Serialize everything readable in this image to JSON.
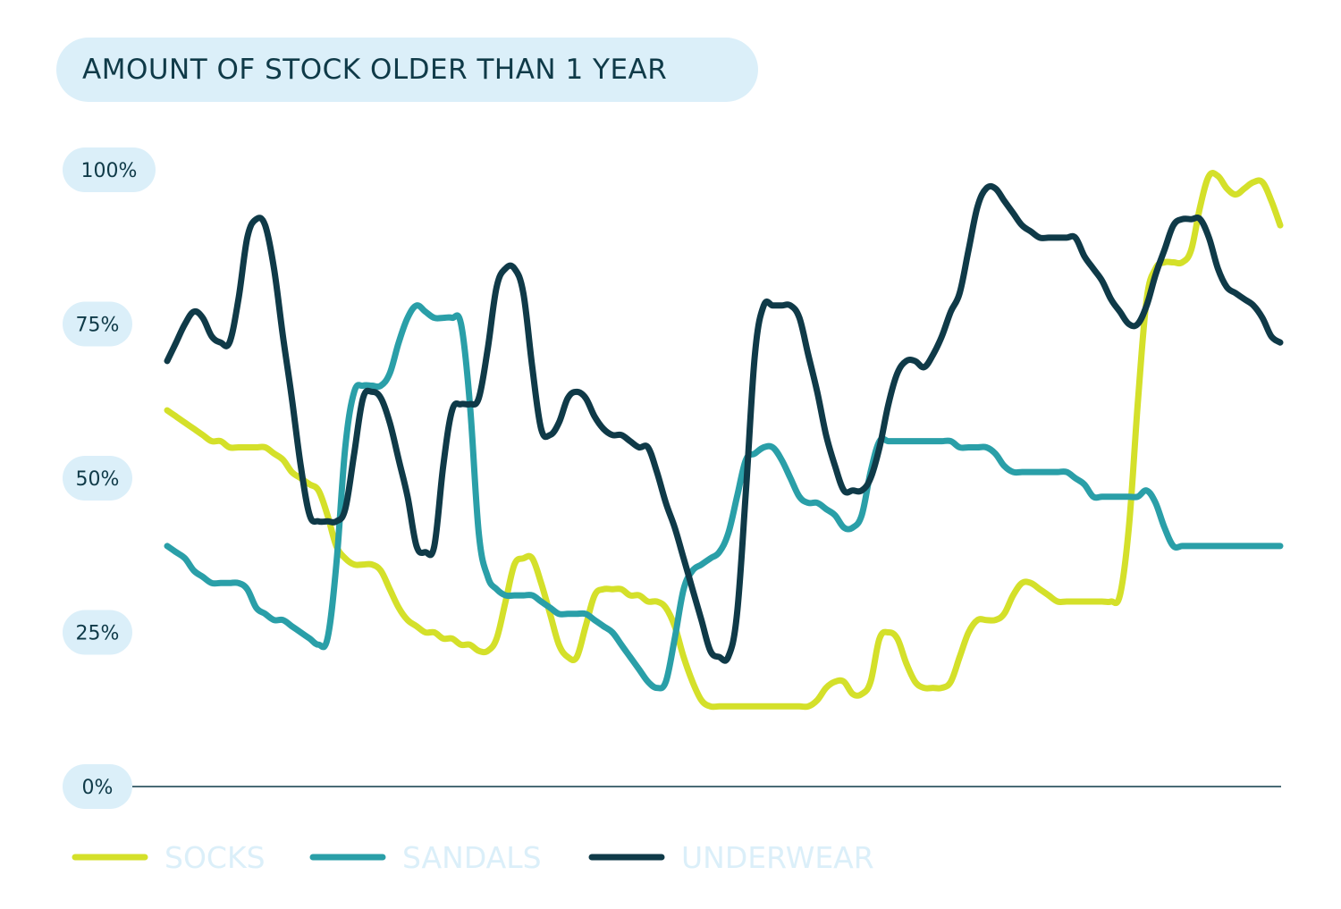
{
  "chart_data": {
    "type": "line",
    "title": "AMOUNT OF STOCK OLDER THAN 1 YEAR",
    "ylim": [
      0,
      100
    ],
    "yticks": [
      {
        "value": 0,
        "label": "0%"
      },
      {
        "value": 25,
        "label": "25%"
      },
      {
        "value": 50,
        "label": "50%"
      },
      {
        "value": 75,
        "label": "75%"
      },
      {
        "value": 100,
        "label": "100%"
      }
    ],
    "x": [
      0,
      1,
      2,
      3,
      4,
      5,
      6,
      7,
      8,
      9,
      10,
      11,
      12,
      13,
      14,
      15,
      16,
      17,
      18,
      19,
      20,
      21,
      22,
      23,
      24,
      25,
      26,
      27,
      28,
      29,
      30,
      31,
      32,
      33,
      34,
      35,
      36,
      37,
      38,
      39,
      40,
      41,
      42,
      43,
      44,
      45,
      46,
      47,
      48,
      49,
      50,
      51,
      52,
      53,
      54,
      55,
      56,
      57,
      58,
      59,
      60,
      61,
      62,
      63,
      64,
      65,
      66,
      67,
      68,
      69,
      70,
      71,
      72,
      73,
      74,
      75,
      76,
      77,
      78,
      79,
      80,
      81,
      82,
      83,
      84,
      85,
      86,
      87,
      88,
      89,
      90,
      91,
      92,
      93,
      94,
      95,
      96,
      97,
      98,
      99,
      100,
      101,
      102,
      103,
      104,
      105,
      106,
      107,
      108,
      109,
      110,
      111,
      112,
      113,
      114,
      115,
      116,
      117,
      118,
      119,
      120,
      121,
      122,
      123,
      124,
      125
    ],
    "grid": false,
    "legend_position": "bottom-left",
    "series": [
      {
        "name": "SOCKS",
        "color": "#d4e02a",
        "values": [
          61,
          60,
          59,
          58,
          57,
          56,
          56,
          55,
          55,
          55,
          55,
          55,
          54,
          53,
          51,
          50,
          49,
          48,
          44,
          39,
          37,
          36,
          36,
          36,
          35,
          32,
          29,
          27,
          26,
          25,
          25,
          24,
          24,
          23,
          23,
          22,
          22,
          24,
          30,
          36,
          37,
          37,
          33,
          28,
          23,
          21,
          21,
          26,
          31,
          32,
          32,
          32,
          31,
          31,
          30,
          30,
          29,
          26,
          21,
          17,
          14,
          13,
          13,
          13,
          13,
          13,
          13,
          13,
          13,
          13,
          13,
          13,
          13,
          14,
          16,
          17,
          17,
          15,
          15,
          17,
          24,
          25,
          24,
          20,
          17,
          16,
          16,
          16,
          17,
          21,
          25,
          27,
          27,
          27,
          28,
          31,
          33,
          33,
          32,
          31,
          30,
          30,
          30,
          30,
          30,
          30,
          30,
          31,
          42,
          62,
          79,
          84,
          85,
          85,
          85,
          87,
          94,
          99,
          99,
          97,
          96,
          97,
          98,
          98,
          95,
          91
        ]
      },
      {
        "name": "SANDALS",
        "color": "#2a9fa8",
        "values": [
          39,
          38,
          37,
          35,
          34,
          33,
          33,
          33,
          33,
          32,
          29,
          28,
          27,
          27,
          26,
          25,
          24,
          23,
          24,
          36,
          55,
          64,
          65,
          65,
          65,
          67,
          72,
          76,
          78,
          77,
          76,
          76,
          76,
          75,
          62,
          41,
          34,
          32,
          31,
          31,
          31,
          31,
          30,
          29,
          28,
          28,
          28,
          28,
          27,
          26,
          25,
          23,
          21,
          19,
          17,
          16,
          17,
          24,
          32,
          35,
          36,
          37,
          38,
          41,
          47,
          53,
          54,
          55,
          55,
          53,
          50,
          47,
          46,
          46,
          45,
          44,
          42,
          42,
          44,
          51,
          56,
          56,
          56,
          56,
          56,
          56,
          56,
          56,
          56,
          55,
          55,
          55,
          55,
          54,
          52,
          51,
          51,
          51,
          51,
          51,
          51,
          51,
          50,
          49,
          47,
          47,
          47,
          47,
          47,
          47,
          48,
          46,
          42,
          39,
          39,
          39,
          39,
          39,
          39,
          39,
          39,
          39,
          39,
          39,
          39,
          39
        ]
      },
      {
        "name": "UNDERWEAR",
        "color": "#0f3a48",
        "values": [
          69,
          72,
          75,
          77,
          76,
          73,
          72,
          72,
          79,
          89,
          92,
          91,
          84,
          73,
          63,
          52,
          44,
          43,
          43,
          43,
          45,
          54,
          63,
          64,
          63,
          59,
          53,
          47,
          39,
          38,
          39,
          52,
          61,
          62,
          62,
          63,
          71,
          81,
          84,
          84,
          80,
          68,
          58,
          57,
          59,
          63,
          64,
          63,
          60,
          58,
          57,
          57,
          56,
          55,
          55,
          51,
          46,
          42,
          37,
          32,
          27,
          22,
          21,
          21,
          28,
          48,
          70,
          78,
          78,
          78,
          78,
          76,
          70,
          64,
          57,
          52,
          48,
          48,
          48,
          50,
          55,
          62,
          67,
          69,
          69,
          68,
          70,
          73,
          77,
          80,
          87,
          94,
          97,
          97,
          95,
          93,
          91,
          90,
          89,
          89,
          89,
          89,
          89,
          86,
          84,
          82,
          79,
          77,
          75,
          75,
          78,
          83,
          87,
          91,
          92,
          92,
          92,
          89,
          84,
          81,
          80,
          79,
          78,
          76,
          73,
          72
        ]
      }
    ]
  }
}
